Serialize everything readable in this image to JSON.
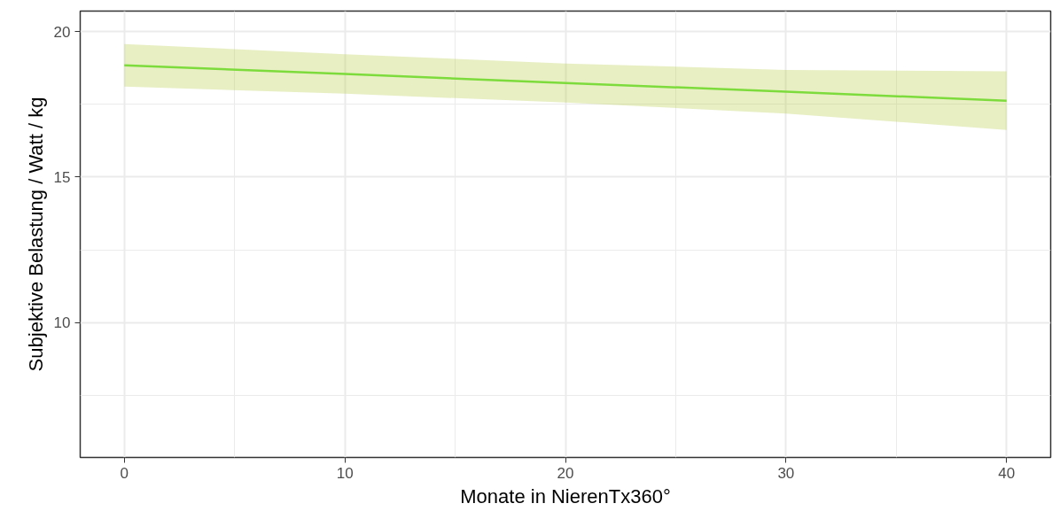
{
  "chart_data": {
    "type": "line",
    "xlabel": "Monate in NierenTx360°",
    "ylabel": "Subjektive Belastung / Watt / kg",
    "x": [
      0,
      10,
      20,
      30,
      40
    ],
    "series": [
      {
        "color": "#7ddc3c",
        "values": [
          18.84,
          18.54,
          18.23,
          17.93,
          17.62
        ],
        "lower": [
          18.11,
          17.86,
          17.56,
          17.18,
          16.62
        ],
        "upper": [
          19.57,
          19.22,
          18.9,
          18.68,
          18.63
        ]
      }
    ],
    "xlim": [
      -2,
      42
    ],
    "ylim": [
      5.37,
      20.7
    ],
    "xticks": [
      0,
      {
        "value": 5,
        "label": null
      },
      10,
      {
        "value": 15,
        "label": null
      },
      20,
      {
        "value": 25,
        "label": null
      },
      30,
      {
        "value": 35,
        "label": null
      },
      40
    ],
    "yticks": [
      {
        "value": 7.5,
        "label": null
      },
      10,
      {
        "value": 12.5,
        "label": null
      },
      15,
      {
        "value": 17.5,
        "label": null
      },
      20
    ],
    "grid": true
  }
}
